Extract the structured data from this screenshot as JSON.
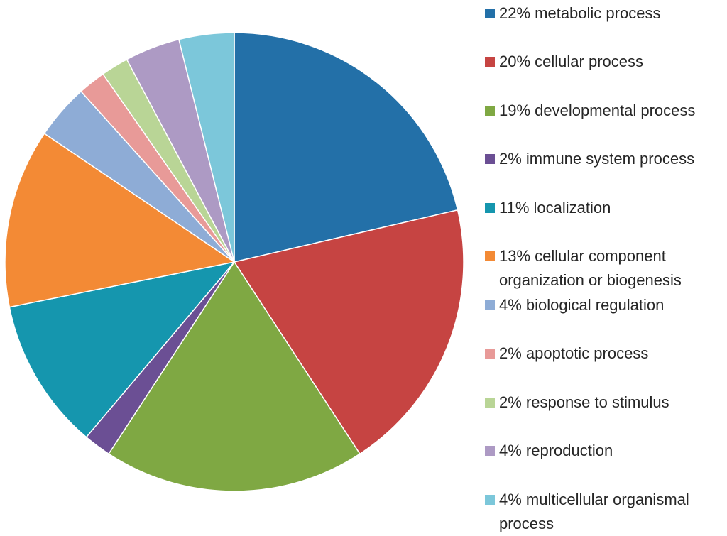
{
  "chart_data": {
    "type": "pie",
    "title": "",
    "slices": [
      {
        "label": "22% metabolic process",
        "value": 22,
        "color": "#2370a8"
      },
      {
        "label": "20% cellular process",
        "value": 20,
        "color": "#c64442"
      },
      {
        "label": "19% developmental process",
        "value": 19,
        "color": "#7fa843"
      },
      {
        "label": "2% immune system process",
        "value": 2,
        "color": "#6b4f94"
      },
      {
        "label": "11% localization",
        "value": 11,
        "color": "#1596ae"
      },
      {
        "label": "13% cellular component organization or biogenesis",
        "value": 13,
        "color": "#f38a35"
      },
      {
        "label": "4% biological regulation",
        "value": 4,
        "color": "#8eacd6"
      },
      {
        "label": "2% apoptotic process",
        "value": 2,
        "color": "#e89a98"
      },
      {
        "label": "2% response to stimulus",
        "value": 2,
        "color": "#b9d596"
      },
      {
        "label": "4% reproduction",
        "value": 4,
        "color": "#ad9ac4"
      },
      {
        "label": "4% multicellular organismal process",
        "value": 4,
        "color": "#7cc7da"
      }
    ],
    "start_angle": "12 o'clock",
    "direction": "clockwise",
    "legend_position": "right"
  }
}
